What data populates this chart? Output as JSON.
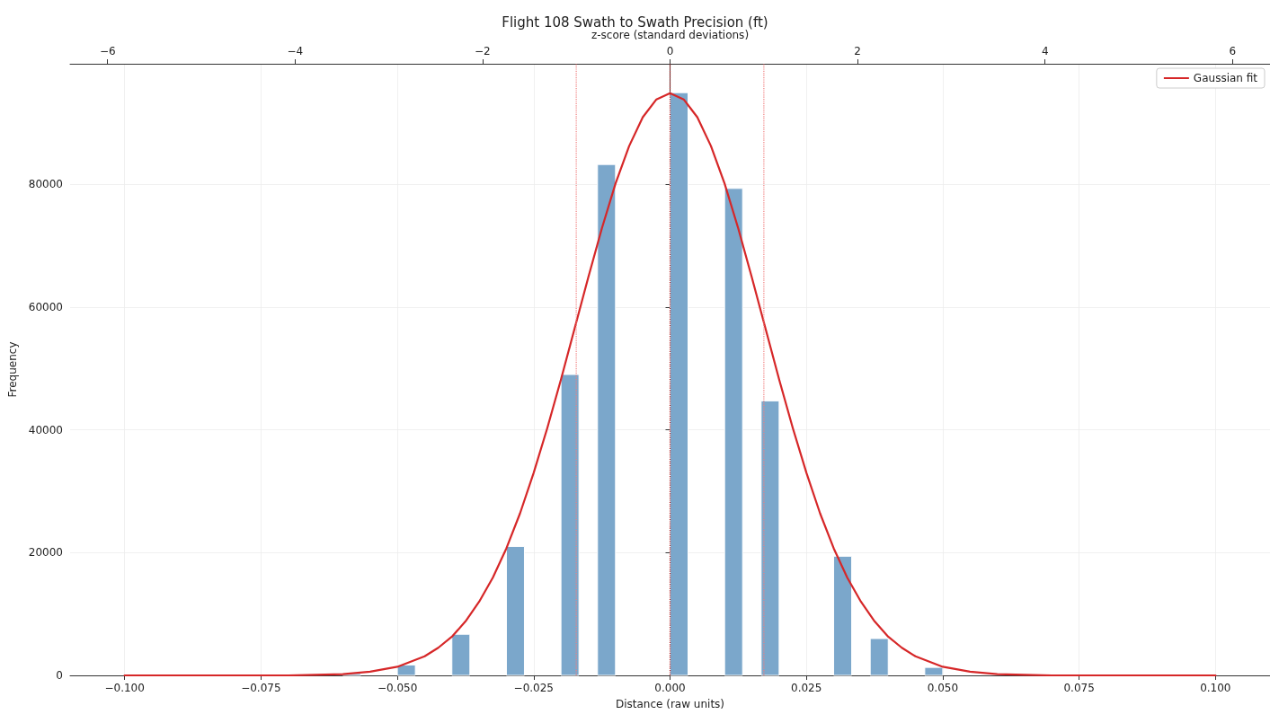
{
  "chart_data": {
    "type": "histogram",
    "title": "Flight 108 Swath to Swath Precision (ft)",
    "xlabel": "Distance (raw units)",
    "ylabel": "Frequency",
    "x2label": "z-score (standard deviations)",
    "bins": [
      -0.06,
      -0.0567,
      -0.05,
      -0.0467,
      -0.04,
      -0.0367,
      -0.03,
      -0.0267,
      -0.02,
      -0.0167,
      -0.0133,
      -0.01,
      0,
      0.0033,
      0.01,
      0.0133,
      0.0167,
      0.02,
      0.03,
      0.0333,
      0.0367,
      0.04,
      0.0467,
      0.05
    ],
    "values": [
      300,
      0,
      1700,
      0,
      6700,
      0,
      21000,
      0,
      49000,
      0,
      83200,
      0,
      94900,
      0,
      79300,
      0,
      44700,
      0,
      19400,
      0,
      6000,
      0,
      1300
    ],
    "color": "#7ba7cb",
    "series": [
      {
        "name": "Gaussian fit",
        "type": "line",
        "color": "#d62728",
        "x": [
          -0.1,
          -0.08,
          -0.07,
          -0.065,
          -0.06,
          -0.055,
          -0.05,
          -0.045,
          -0.0425,
          -0.04,
          -0.0375,
          -0.035,
          -0.0325,
          -0.03,
          -0.0275,
          -0.025,
          -0.0225,
          -0.02,
          -0.0175,
          -0.015,
          -0.0125,
          -0.01,
          -0.0075,
          -0.005,
          -0.0025,
          0,
          0.0025,
          0.005,
          0.0075,
          0.01,
          0.0125,
          0.015,
          0.0175,
          0.02,
          0.0225,
          0.025,
          0.0275,
          0.03,
          0.0325,
          0.035,
          0.0375,
          0.04,
          0.0425,
          0.045,
          0.05,
          0.055,
          0.06,
          0.065,
          0.07,
          0.08,
          0.1
        ],
        "values": [
          0,
          0,
          0,
          100,
          200,
          600,
          1400,
          3100,
          4500,
          6300,
          8800,
          12000,
          15900,
          20700,
          26400,
          33000,
          40300,
          48200,
          56500,
          64800,
          72800,
          80100,
          86200,
          90900,
          93800,
          94800,
          93800,
          90900,
          86200,
          80100,
          72800,
          64800,
          56500,
          48200,
          40300,
          33000,
          26400,
          20700,
          15900,
          12000,
          8800,
          6300,
          4500,
          3100,
          1400,
          600,
          200,
          100,
          0,
          0,
          0
        ]
      }
    ],
    "xlim": [
      -0.11,
      0.11
    ],
    "xticks": [
      {
        "value": -0.1,
        "label": "−0.100"
      },
      {
        "value": -0.075,
        "label": "−0.075"
      },
      {
        "value": -0.05,
        "label": "−0.050"
      },
      {
        "value": -0.025,
        "label": "−0.025"
      },
      {
        "value": 0,
        "label": "0.000"
      },
      {
        "value": 0.025,
        "label": "0.025"
      },
      {
        "value": 0.05,
        "label": "0.050"
      },
      {
        "value": 0.075,
        "label": "0.075"
      },
      {
        "value": 0.1,
        "label": "0.100"
      }
    ],
    "x2lim": [
      -6.4,
      6.4
    ],
    "x2ticks": [
      {
        "value": -6,
        "label": "−6"
      },
      {
        "value": -4,
        "label": "−4"
      },
      {
        "value": -2,
        "label": "−2"
      },
      0,
      2,
      4,
      6
    ],
    "ylim": [
      0,
      99600
    ],
    "yticks": [
      0,
      20000,
      40000,
      60000,
      80000
    ],
    "ref_lines": [
      {
        "axis": "x",
        "value": 0,
        "color": "#b22222",
        "line_style": "dotted"
      },
      {
        "axis": "x",
        "value": -0.0172,
        "color": "#f08080",
        "line_style": "dotted"
      },
      {
        "axis": "x",
        "value": 0.0172,
        "color": "#f08080",
        "line_style": "dotted"
      }
    ],
    "grid": true,
    "legend": "top right",
    "marker": "none",
    "line_style": "solid"
  }
}
